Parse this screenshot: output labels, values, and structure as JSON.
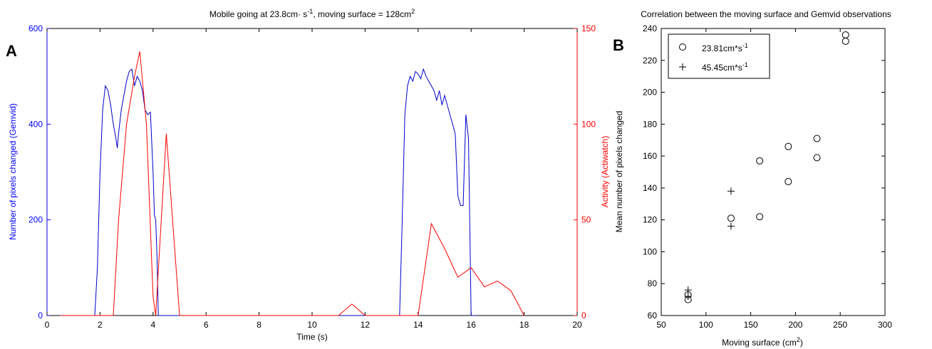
{
  "chart_data": [
    {
      "panel_label": "A",
      "type": "line",
      "title": "Mobile going at 23.8cm· s",
      "title_sup": "-1",
      "title_mid": ", moving surface = 128cm",
      "title_sup2": "2",
      "xlabel": "Time (s)",
      "ylabel_left": "Number of pixels changed (Gemvid)",
      "ylabel_right": "Activity (Actiwatch)",
      "xlim": [
        0,
        20
      ],
      "ylim_left": [
        0,
        600
      ],
      "ylim_right": [
        0,
        150
      ],
      "xticks": [
        0,
        2,
        4,
        6,
        8,
        10,
        12,
        14,
        16,
        18,
        20
      ],
      "yticks_left": [
        0,
        200,
        400,
        600
      ],
      "yticks_right": [
        0,
        50,
        100,
        150
      ],
      "grid": false,
      "colors": {
        "left_axis": "#0000ff",
        "right_axis": "#ff0000",
        "gemvid": "#0000cc",
        "actiwatch": "#ff0000"
      },
      "series": [
        {
          "axis": "left",
          "points": [
            [
              0.5,
              0
            ],
            [
              1.8,
              0
            ],
            [
              1.9,
              100
            ],
            [
              2.0,
              300
            ],
            [
              2.1,
              430
            ],
            [
              2.2,
              480
            ],
            [
              2.3,
              470
            ],
            [
              2.4,
              440
            ],
            [
              2.5,
              400
            ],
            [
              2.6,
              370
            ],
            [
              2.65,
              350
            ],
            [
              2.7,
              380
            ],
            [
              2.8,
              430
            ],
            [
              2.9,
              460
            ],
            [
              3.0,
              490
            ],
            [
              3.1,
              510
            ],
            [
              3.2,
              515
            ],
            [
              3.3,
              480
            ],
            [
              3.4,
              500
            ],
            [
              3.5,
              490
            ],
            [
              3.6,
              470
            ],
            [
              3.7,
              430
            ],
            [
              3.8,
              420
            ],
            [
              3.9,
              425
            ],
            [
              4.0,
              300
            ],
            [
              4.05,
              210
            ],
            [
              4.1,
              200
            ],
            [
              4.15,
              120
            ],
            [
              4.2,
              0
            ],
            [
              5.0,
              0
            ],
            [
              13.3,
              0
            ],
            [
              13.4,
              200
            ],
            [
              13.5,
              420
            ],
            [
              13.6,
              480
            ],
            [
              13.7,
              500
            ],
            [
              13.8,
              490
            ],
            [
              13.9,
              510
            ],
            [
              14.0,
              505
            ],
            [
              14.1,
              495
            ],
            [
              14.2,
              515
            ],
            [
              14.3,
              500
            ],
            [
              14.4,
              490
            ],
            [
              14.5,
              480
            ],
            [
              14.6,
              470
            ],
            [
              14.7,
              450
            ],
            [
              14.8,
              470
            ],
            [
              14.9,
              440
            ],
            [
              15.0,
              460
            ],
            [
              15.1,
              440
            ],
            [
              15.2,
              420
            ],
            [
              15.3,
              400
            ],
            [
              15.4,
              380
            ],
            [
              15.5,
              250
            ],
            [
              15.6,
              230
            ],
            [
              15.7,
              230
            ],
            [
              15.8,
              420
            ],
            [
              15.9,
              370
            ],
            [
              16.0,
              0
            ],
            [
              16.2,
              0
            ]
          ]
        },
        {
          "axis": "right",
          "points": [
            [
              0.5,
              0
            ],
            [
              2.5,
              0
            ],
            [
              2.7,
              50
            ],
            [
              3.0,
              100
            ],
            [
              3.3,
              125
            ],
            [
              3.5,
              138
            ],
            [
              3.75,
              100
            ],
            [
              4.0,
              10
            ],
            [
              4.1,
              0
            ],
            [
              4.5,
              95
            ],
            [
              5.0,
              0
            ],
            [
              11.0,
              0
            ],
            [
              11.5,
              6
            ],
            [
              12.0,
              0
            ],
            [
              14.0,
              0
            ],
            [
              14.5,
              48
            ],
            [
              15.0,
              35
            ],
            [
              15.5,
              20
            ],
            [
              16.0,
              25
            ],
            [
              16.5,
              15
            ],
            [
              17.0,
              18
            ],
            [
              17.5,
              13
            ],
            [
              18.0,
              0
            ]
          ]
        }
      ]
    },
    {
      "panel_label": "B",
      "type": "scatter",
      "title": "Correlation between the moving surface and Gemvid observations",
      "xlabel": "Moving surface (cm",
      "xlabel_sup": "2",
      "xlabel_end": ")",
      "ylabel": "Mean number of pixels changed",
      "xlim": [
        50,
        300
      ],
      "ylim": [
        60,
        240
      ],
      "xticks": [
        50,
        100,
        150,
        200,
        250,
        300
      ],
      "yticks": [
        60,
        80,
        100,
        120,
        140,
        160,
        180,
        200,
        220,
        240
      ],
      "grid": false,
      "legend_position": "top-left",
      "series": [
        {
          "name": "23.81cm*s",
          "name_sup": "-1",
          "marker": "circle",
          "points": [
            [
              80,
              73
            ],
            [
              80,
              70
            ],
            [
              128,
              121
            ],
            [
              160,
              157
            ],
            [
              160,
              122
            ],
            [
              192,
              166
            ],
            [
              192,
              144
            ],
            [
              224,
              171
            ],
            [
              224,
              159
            ],
            [
              256,
              236
            ],
            [
              256,
              232
            ]
          ]
        },
        {
          "name": "45.45cm*s",
          "name_sup": "-1",
          "marker": "plus",
          "points": [
            [
              80,
              76
            ],
            [
              80,
              72
            ],
            [
              128,
              138
            ],
            [
              128,
              116
            ]
          ]
        }
      ]
    }
  ]
}
